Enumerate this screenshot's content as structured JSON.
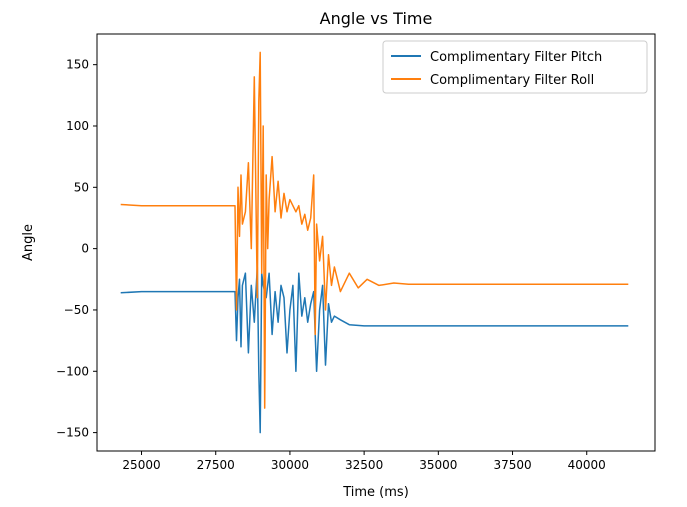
{
  "chart_data": {
    "type": "line",
    "title": "Angle vs Time",
    "xlabel": "Time (ms)",
    "ylabel": "Angle",
    "xlim": [
      23500,
      42300
    ],
    "ylim": [
      -165,
      175
    ],
    "xticks": [
      25000,
      27500,
      30000,
      32500,
      35000,
      37500,
      40000
    ],
    "yticks": [
      -150,
      -100,
      -50,
      0,
      50,
      100,
      150
    ],
    "grid": false,
    "legend_position": "upper right",
    "series": [
      {
        "name": "Complimentary Filter Pitch",
        "color": "#1f77b4",
        "x": [
          24300,
          25000,
          26000,
          27000,
          28000,
          28150,
          28200,
          28250,
          28300,
          28350,
          28400,
          28500,
          28600,
          28700,
          28800,
          28900,
          28950,
          29000,
          29050,
          29100,
          29200,
          29300,
          29400,
          29500,
          29600,
          29700,
          29800,
          29900,
          30000,
          30100,
          30200,
          30300,
          30400,
          30500,
          30600,
          30700,
          30800,
          30850,
          30900,
          31000,
          31100,
          31200,
          31300,
          31400,
          31500,
          31700,
          32000,
          32500,
          33000,
          34000,
          36000,
          38000,
          40000,
          41400
        ],
        "y": [
          -36,
          -35,
          -35,
          -35,
          -35,
          -35,
          -75,
          -40,
          -25,
          -80,
          -30,
          -20,
          -85,
          -30,
          -60,
          -15,
          -100,
          -150,
          -20,
          -30,
          -40,
          -20,
          -70,
          -35,
          -60,
          -30,
          -40,
          -85,
          -50,
          -30,
          -100,
          -20,
          -55,
          -40,
          -60,
          -45,
          -35,
          -70,
          -100,
          -50,
          -30,
          -95,
          -45,
          -60,
          -55,
          -58,
          -62,
          -63,
          -63,
          -63,
          -63,
          -63,
          -63,
          -63
        ]
      },
      {
        "name": "Complimentary Filter Roll",
        "color": "#ff7f0e",
        "x": [
          24300,
          25000,
          26000,
          27000,
          28000,
          28150,
          28200,
          28250,
          28300,
          28350,
          28400,
          28500,
          28600,
          28700,
          28800,
          28900,
          28950,
          29000,
          29050,
          29100,
          29150,
          29200,
          29250,
          29300,
          29400,
          29500,
          29600,
          29700,
          29800,
          29900,
          30000,
          30100,
          30200,
          30300,
          30400,
          30500,
          30600,
          30700,
          30800,
          30850,
          30900,
          31000,
          31100,
          31200,
          31300,
          31400,
          31500,
          31700,
          32000,
          32300,
          32600,
          33000,
          33500,
          34000,
          36000,
          38000,
          40000,
          41400
        ],
        "y": [
          36,
          35,
          35,
          35,
          35,
          35,
          -50,
          50,
          10,
          60,
          20,
          30,
          70,
          0,
          140,
          -40,
          120,
          160,
          -20,
          100,
          -130,
          60,
          0,
          40,
          75,
          30,
          55,
          25,
          45,
          30,
          40,
          35,
          30,
          35,
          20,
          28,
          15,
          25,
          60,
          -70,
          20,
          -10,
          10,
          -50,
          -5,
          -30,
          -15,
          -35,
          -20,
          -32,
          -25,
          -30,
          -28,
          -29,
          -29,
          -29,
          -29,
          -29
        ]
      }
    ]
  }
}
